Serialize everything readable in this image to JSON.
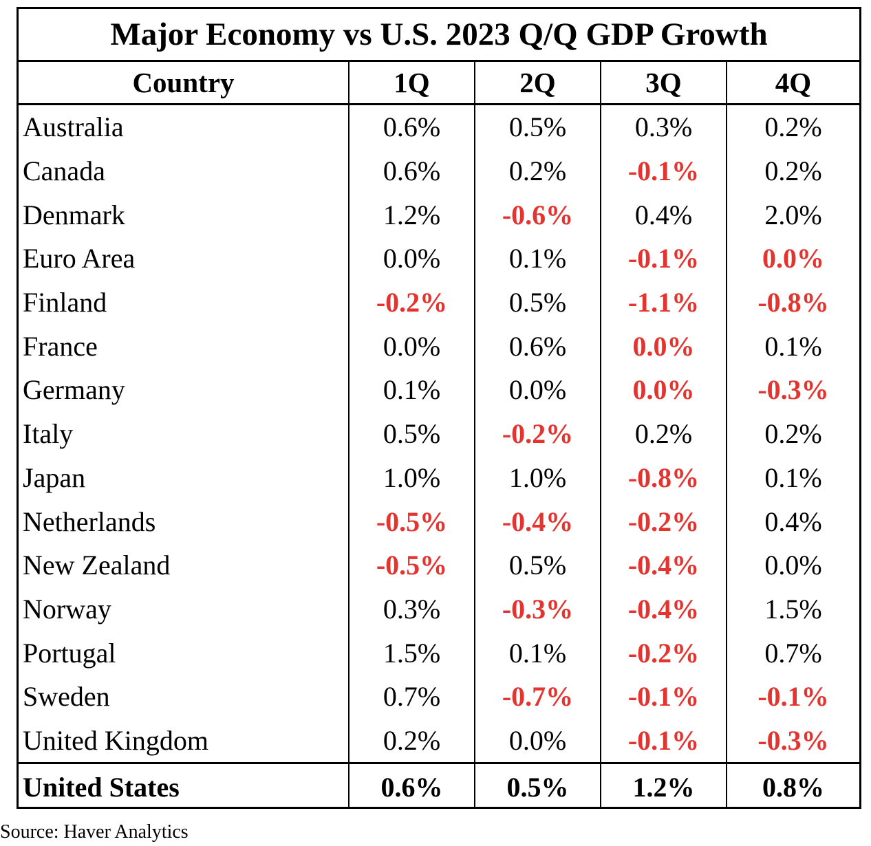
{
  "chart_data": {
    "type": "table",
    "title": "Major Economy vs U.S. 2023 Q/Q GDP Growth",
    "columns": [
      "Country",
      "1Q",
      "2Q",
      "3Q",
      "4Q"
    ],
    "rows": [
      {
        "country": "Australia",
        "values": [
          "0.6%",
          "0.5%",
          "0.3%",
          "0.2%"
        ],
        "negative": [
          false,
          false,
          false,
          false
        ]
      },
      {
        "country": "Canada",
        "values": [
          "0.6%",
          "0.2%",
          "-0.1%",
          "0.2%"
        ],
        "negative": [
          false,
          false,
          true,
          false
        ]
      },
      {
        "country": "Denmark",
        "values": [
          "1.2%",
          "-0.6%",
          "0.4%",
          "2.0%"
        ],
        "negative": [
          false,
          true,
          false,
          false
        ]
      },
      {
        "country": "Euro Area",
        "values": [
          "0.0%",
          "0.1%",
          "-0.1%",
          "0.0%"
        ],
        "negative": [
          false,
          false,
          true,
          true
        ]
      },
      {
        "country": "Finland",
        "values": [
          "-0.2%",
          "0.5%",
          "-1.1%",
          "-0.8%"
        ],
        "negative": [
          true,
          false,
          true,
          true
        ]
      },
      {
        "country": "France",
        "values": [
          "0.0%",
          "0.6%",
          "0.0%",
          "0.1%"
        ],
        "negative": [
          false,
          false,
          true,
          false
        ]
      },
      {
        "country": "Germany",
        "values": [
          "0.1%",
          "0.0%",
          "0.0%",
          "-0.3%"
        ],
        "negative": [
          false,
          false,
          true,
          true
        ]
      },
      {
        "country": "Italy",
        "values": [
          "0.5%",
          "-0.2%",
          "0.2%",
          "0.2%"
        ],
        "negative": [
          false,
          true,
          false,
          false
        ]
      },
      {
        "country": "Japan",
        "values": [
          "1.0%",
          "1.0%",
          "-0.8%",
          "0.1%"
        ],
        "negative": [
          false,
          false,
          true,
          false
        ]
      },
      {
        "country": "Netherlands",
        "values": [
          "-0.5%",
          "-0.4%",
          "-0.2%",
          "0.4%"
        ],
        "negative": [
          true,
          true,
          true,
          false
        ]
      },
      {
        "country": "New Zealand",
        "values": [
          "-0.5%",
          "0.5%",
          "-0.4%",
          "0.0%"
        ],
        "negative": [
          true,
          false,
          true,
          false
        ]
      },
      {
        "country": "Norway",
        "values": [
          "0.3%",
          "-0.3%",
          "-0.4%",
          "1.5%"
        ],
        "negative": [
          false,
          true,
          true,
          false
        ]
      },
      {
        "country": "Portugal",
        "values": [
          "1.5%",
          "0.1%",
          "-0.2%",
          "0.7%"
        ],
        "negative": [
          false,
          false,
          true,
          false
        ]
      },
      {
        "country": "Sweden",
        "values": [
          "0.7%",
          "-0.7%",
          "-0.1%",
          "-0.1%"
        ],
        "negative": [
          false,
          true,
          true,
          true
        ]
      },
      {
        "country": "United Kingdom",
        "values": [
          "0.2%",
          "0.0%",
          "-0.1%",
          "-0.3%"
        ],
        "negative": [
          false,
          false,
          true,
          true
        ]
      }
    ],
    "total_row": {
      "country": "United States",
      "values": [
        "0.6%",
        "0.5%",
        "1.2%",
        "0.8%"
      ]
    },
    "negative_color": "#e3342f",
    "source": "Source: Haver Analytics"
  }
}
